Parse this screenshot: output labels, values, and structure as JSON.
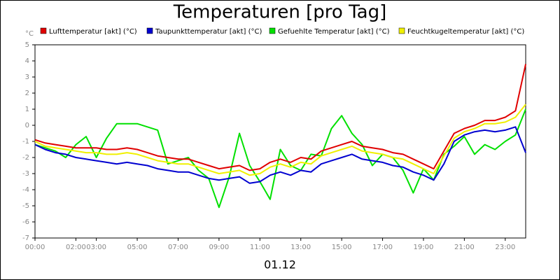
{
  "chart_data": {
    "type": "line",
    "title": "Temperaturen [pro Tag]",
    "y_label": "°C",
    "x_label": "01.12",
    "xlim": [
      0,
      24
    ],
    "xticks": [
      {
        "value": 0,
        "label": "00:00"
      },
      {
        "value": 2,
        "label": "02:00"
      },
      {
        "value": 3,
        "label": "03:00"
      },
      {
        "value": 5,
        "label": "05:00"
      },
      {
        "value": 7,
        "label": "07:00"
      },
      {
        "value": 9,
        "label": "09:00"
      },
      {
        "value": 11,
        "label": "11:00"
      },
      {
        "value": 13,
        "label": "13:00"
      },
      {
        "value": 15,
        "label": "15:00"
      },
      {
        "value": 17,
        "label": "17:00"
      },
      {
        "value": 19,
        "label": "19:00"
      },
      {
        "value": 21,
        "label": "21:00"
      },
      {
        "value": 23,
        "label": "23:00"
      }
    ],
    "ylim": [
      -7,
      5
    ],
    "yticks": [
      -7,
      -6,
      -5,
      -4,
      -3,
      -2,
      -1,
      0,
      1,
      2,
      3,
      4,
      5
    ],
    "grid": false,
    "x": [
      0,
      0.5,
      1,
      1.5,
      2,
      2.5,
      3,
      3.5,
      4,
      4.5,
      5,
      5.5,
      6,
      6.5,
      7,
      7.5,
      8,
      8.5,
      9,
      9.5,
      10,
      10.5,
      11,
      11.5,
      12,
      12.5,
      13,
      13.5,
      14,
      14.5,
      15,
      15.5,
      16,
      16.5,
      17,
      17.5,
      18,
      18.5,
      19,
      19.5,
      20,
      20.5,
      21,
      21.5,
      22,
      22.5,
      23,
      23.5,
      24
    ],
    "series": [
      {
        "name": "Lufttemperatur [akt] (°C)",
        "color": "#e00000",
        "values": [
          -0.9,
          -1.1,
          -1.2,
          -1.3,
          -1.4,
          -1.4,
          -1.4,
          -1.5,
          -1.5,
          -1.4,
          -1.5,
          -1.7,
          -1.9,
          -2.0,
          -2.1,
          -2.1,
          -2.3,
          -2.5,
          -2.7,
          -2.6,
          -2.5,
          -2.8,
          -2.7,
          -2.3,
          -2.1,
          -2.3,
          -2.0,
          -2.1,
          -1.6,
          -1.4,
          -1.2,
          -1.0,
          -1.3,
          -1.4,
          -1.5,
          -1.7,
          -1.8,
          -2.1,
          -2.4,
          -2.7,
          -1.6,
          -0.5,
          -0.2,
          0.0,
          0.3,
          0.3,
          0.5,
          0.9,
          3.8
        ]
      },
      {
        "name": "Taupunkttemperatur [akt] (°C)",
        "color": "#0000d0",
        "values": [
          -1.2,
          -1.5,
          -1.7,
          -1.8,
          -2.0,
          -2.1,
          -2.2,
          -2.3,
          -2.4,
          -2.3,
          -2.4,
          -2.5,
          -2.7,
          -2.8,
          -2.9,
          -2.9,
          -3.1,
          -3.3,
          -3.4,
          -3.3,
          -3.2,
          -3.6,
          -3.5,
          -3.1,
          -2.9,
          -3.1,
          -2.8,
          -2.9,
          -2.4,
          -2.2,
          -2.0,
          -1.8,
          -2.1,
          -2.2,
          -2.3,
          -2.5,
          -2.6,
          -2.9,
          -3.1,
          -3.4,
          -2.4,
          -1.0,
          -0.6,
          -0.4,
          -0.3,
          -0.4,
          -0.3,
          -0.1,
          -1.7
        ]
      },
      {
        "name": "Gefuehlte Temperatur [akt] (°C)",
        "color": "#00e000",
        "values": [
          -1.2,
          -1.4,
          -1.6,
          -2.0,
          -1.2,
          -0.7,
          -2.0,
          -0.8,
          0.1,
          0.1,
          0.1,
          -0.1,
          -0.3,
          -2.4,
          -2.2,
          -2.0,
          -2.8,
          -3.3,
          -5.1,
          -3.2,
          -0.5,
          -2.5,
          -3.5,
          -4.6,
          -1.5,
          -2.5,
          -2.8,
          -1.8,
          -1.9,
          -0.2,
          0.6,
          -0.5,
          -1.2,
          -2.5,
          -1.8,
          -2.0,
          -2.8,
          -4.2,
          -2.7,
          -3.4,
          -1.8,
          -1.3,
          -0.7,
          -1.8,
          -1.2,
          -1.5,
          -1.0,
          -0.6,
          1.0
        ]
      },
      {
        "name": "Feuchtkugeltemperatur [akt] (°C)",
        "color": "#f0f000",
        "values": [
          -1.0,
          -1.3,
          -1.4,
          -1.5,
          -1.6,
          -1.7,
          -1.7,
          -1.8,
          -1.8,
          -1.7,
          -1.8,
          -2.0,
          -2.2,
          -2.3,
          -2.4,
          -2.4,
          -2.6,
          -2.8,
          -3.0,
          -2.9,
          -2.8,
          -3.1,
          -3.0,
          -2.6,
          -2.4,
          -2.6,
          -2.3,
          -2.4,
          -1.9,
          -1.7,
          -1.5,
          -1.3,
          -1.6,
          -1.7,
          -1.8,
          -2.0,
          -2.1,
          -2.4,
          -2.7,
          -3.0,
          -1.9,
          -0.8,
          -0.4,
          -0.2,
          0.1,
          0.1,
          0.2,
          0.5,
          1.3
        ]
      }
    ]
  }
}
